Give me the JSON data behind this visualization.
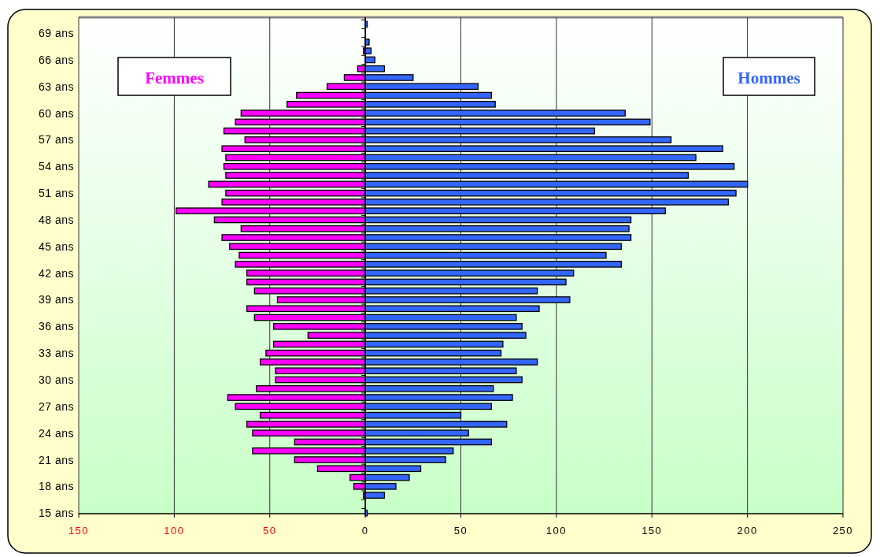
{
  "chart_data": {
    "type": "bar",
    "orientation": "horizontal",
    "stacked": true,
    "categories": [
      null,
      "69 ans",
      null,
      null,
      "66 ans",
      null,
      null,
      "63 ans",
      null,
      null,
      "60 ans",
      null,
      null,
      "57 ans",
      null,
      null,
      "54 ans",
      null,
      null,
      "51 ans",
      null,
      null,
      "48 ans",
      null,
      null,
      "45 ans",
      null,
      null,
      "42 ans",
      null,
      null,
      "39 ans",
      null,
      null,
      "36 ans",
      null,
      null,
      "33 ans",
      null,
      null,
      "30 ans",
      null,
      null,
      "27 ans",
      null,
      null,
      "24 ans",
      null,
      null,
      "21 ans",
      null,
      null,
      "18 ans",
      null,
      null,
      "15 ans"
    ],
    "series": [
      {
        "name": "Femmes",
        "color": "#ff00ff",
        "values": [
          0,
          0,
          0,
          -1,
          0,
          -4,
          -11,
          -20,
          -36,
          -41,
          -65,
          -68,
          -74,
          -63,
          -75,
          -73,
          -74,
          -73,
          -82,
          -73,
          -75,
          -99,
          -79,
          -65,
          -75,
          -71,
          -66,
          -68,
          -62,
          -62,
          -58,
          -46,
          -62,
          -58,
          -48,
          -30,
          -48,
          -52,
          -55,
          -47,
          -47,
          -57,
          -72,
          -68,
          -55,
          -62,
          -59,
          -37,
          -59,
          -37,
          -25,
          -8,
          -6,
          -1,
          0,
          0
        ]
      },
      {
        "name": "Hommes",
        "color": "#3366ff",
        "values": [
          1,
          0,
          2,
          3,
          5,
          10,
          25,
          59,
          66,
          68,
          136,
          149,
          120,
          160,
          187,
          173,
          193,
          169,
          200,
          194,
          190,
          157,
          139,
          138,
          139,
          134,
          126,
          134,
          109,
          105,
          90,
          107,
          91,
          79,
          82,
          84,
          72,
          71,
          90,
          79,
          82,
          67,
          77,
          66,
          50,
          74,
          54,
          66,
          46,
          42,
          29,
          23,
          16,
          10,
          0,
          1
        ]
      }
    ],
    "xlim": [
      -150,
      250
    ],
    "xticks": [
      {
        "value": -150,
        "label": "150"
      },
      {
        "value": -100,
        "label": "100"
      },
      {
        "value": -50,
        "label": "50"
      },
      0,
      50,
      100,
      150,
      200,
      250
    ],
    "grid": "x",
    "legend": "top"
  }
}
